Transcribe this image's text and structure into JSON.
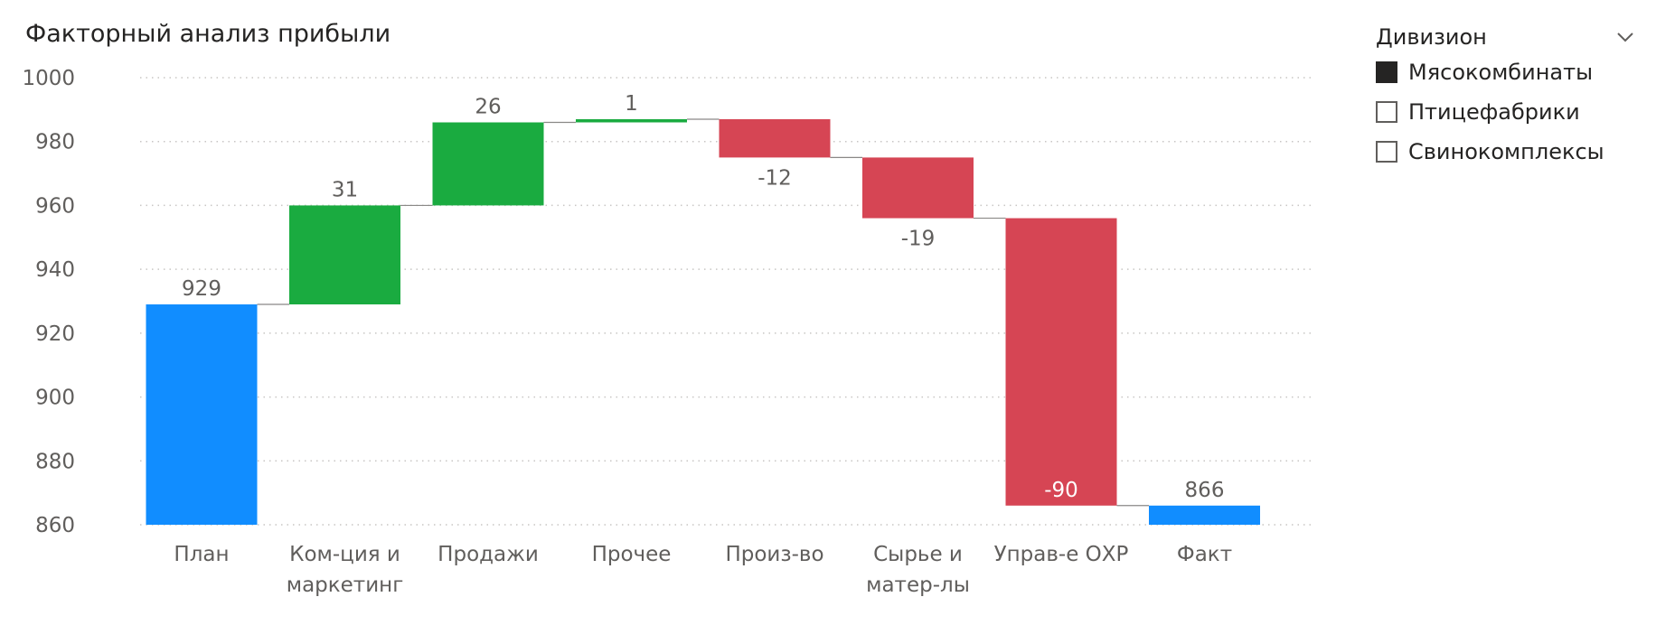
{
  "visual_title": "Факторный анализ прибыли",
  "slicer": {
    "title": "Дивизион",
    "chevron_icon": "chevron-down-icon",
    "items": [
      {
        "label": "Мясокомбинаты",
        "checked": true
      },
      {
        "label": "Птицефабрики",
        "checked": false
      },
      {
        "label": "Свинокомплексы",
        "checked": false
      }
    ]
  },
  "colors": {
    "total": "#118dff",
    "increase": "#1aab40",
    "decrease": "#d64554",
    "text": "#605e5c",
    "grid": "#c8c6c4",
    "connector": "#8a8886"
  },
  "chart_data": {
    "type": "waterfall",
    "title": "Факторный анализ прибыли",
    "ylim": [
      860,
      1000
    ],
    "yticks": [
      "860",
      "880",
      "900",
      "920",
      "940",
      "960",
      "980",
      "1000"
    ],
    "grid": true,
    "categories": [
      [
        "План"
      ],
      [
        "Ком-ция и",
        "маркетинг"
      ],
      [
        "Продажи"
      ],
      [
        "Прочее"
      ],
      [
        "Произ-во"
      ],
      [
        "Сырье и",
        "матер-лы"
      ],
      [
        "Управ-е ОХР"
      ],
      [
        "Факт"
      ]
    ],
    "steps": [
      {
        "kind": "total",
        "value": 929,
        "label": "929"
      },
      {
        "kind": "increase",
        "value": 31,
        "label": "31"
      },
      {
        "kind": "increase",
        "value": 26,
        "label": "26"
      },
      {
        "kind": "increase",
        "value": 1,
        "label": "1"
      },
      {
        "kind": "decrease",
        "value": -12,
        "label": "-12"
      },
      {
        "kind": "decrease",
        "value": -19,
        "label": "-19"
      },
      {
        "kind": "decrease",
        "value": -90,
        "label": "-90"
      },
      {
        "kind": "total",
        "value": 866,
        "label": "866"
      }
    ]
  }
}
